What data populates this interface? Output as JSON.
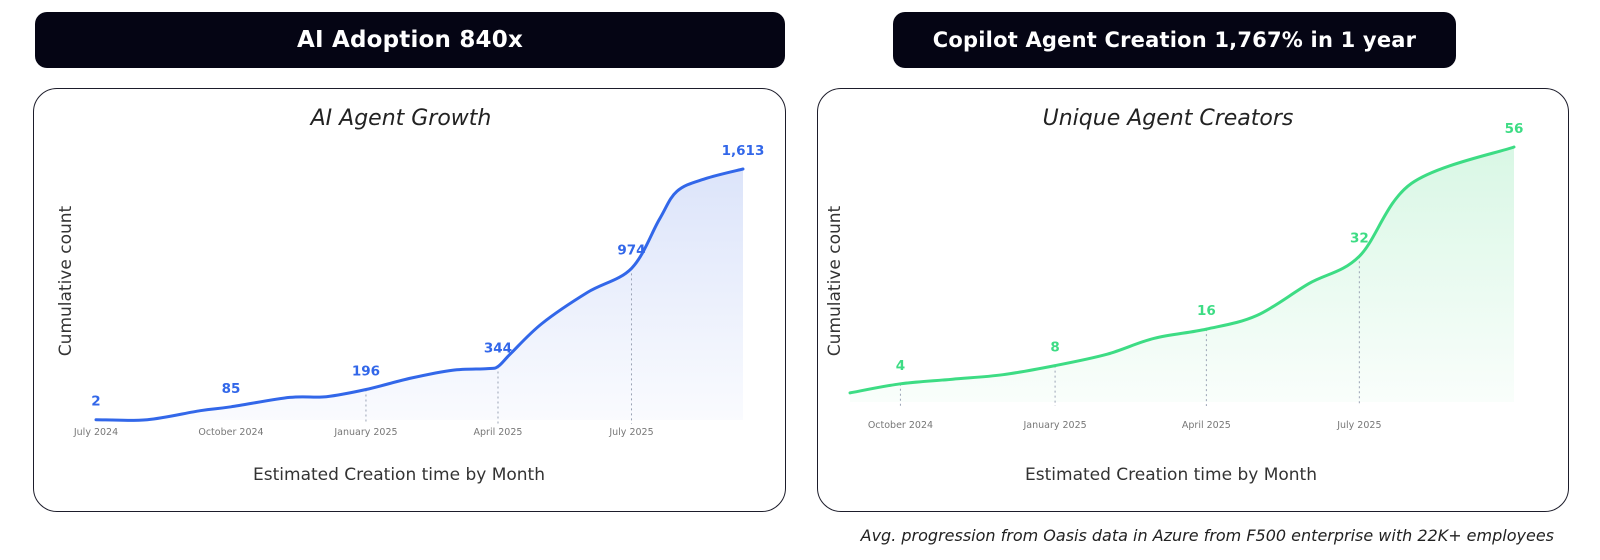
{
  "banners": {
    "left": "AI Adoption 840x",
    "right": "Copilot Agent Creation 1,767% in 1 year"
  },
  "footnote": "Avg. progression from Oasis data in Azure from F500 enterprise with 22K+ employees",
  "chart_data": [
    {
      "type": "area",
      "title": "AI Agent Growth",
      "xlabel": "Estimated Creation time by Month",
      "ylabel": "Cumulative count",
      "color": "#3267E9",
      "fill_color": "#DCE4FA",
      "grid": false,
      "xlim": [
        "2024-07-01",
        "2025-09-15"
      ],
      "ylim": [
        0,
        1613
      ],
      "x_ticks": [
        {
          "x": "2024-07-01",
          "label": "July 2024"
        },
        {
          "x": "2024-10-01",
          "label": "October 2024"
        },
        {
          "x": "2025-01-01",
          "label": "January 2025"
        },
        {
          "x": "2025-04-01",
          "label": "April 2025"
        },
        {
          "x": "2025-07-01",
          "label": "July 2025"
        }
      ],
      "guide_lines": [
        "2025-01-01",
        "2025-04-01",
        "2025-07-01"
      ],
      "points": [
        {
          "x": "2024-07-01",
          "y": 2
        },
        {
          "x": "2024-08-05",
          "y": 2
        },
        {
          "x": "2024-09-10",
          "y": 60
        },
        {
          "x": "2024-10-01",
          "y": 85
        },
        {
          "x": "2024-11-10",
          "y": 145
        },
        {
          "x": "2024-12-05",
          "y": 150
        },
        {
          "x": "2025-01-01",
          "y": 196
        },
        {
          "x": "2025-02-01",
          "y": 270
        },
        {
          "x": "2025-03-01",
          "y": 320
        },
        {
          "x": "2025-03-25",
          "y": 330
        },
        {
          "x": "2025-04-01",
          "y": 344
        },
        {
          "x": "2025-04-10",
          "y": 430
        },
        {
          "x": "2025-05-01",
          "y": 620
        },
        {
          "x": "2025-06-01",
          "y": 820
        },
        {
          "x": "2025-07-01",
          "y": 974
        },
        {
          "x": "2025-07-20",
          "y": 1290
        },
        {
          "x": "2025-08-01",
          "y": 1470
        },
        {
          "x": "2025-08-20",
          "y": 1550
        },
        {
          "x": "2025-09-15",
          "y": 1613
        }
      ],
      "labels": [
        {
          "x": "2024-07-01",
          "y": 2,
          "text": "2"
        },
        {
          "x": "2024-10-01",
          "y": 85,
          "text": "85"
        },
        {
          "x": "2025-01-01",
          "y": 196,
          "text": "196"
        },
        {
          "x": "2025-04-01",
          "y": 344,
          "text": "344"
        },
        {
          "x": "2025-07-01",
          "y": 974,
          "text": "974"
        },
        {
          "x": "2025-09-15",
          "y": 1613,
          "text": "1,613"
        }
      ]
    },
    {
      "type": "area",
      "title": "Unique Agent Creators",
      "xlabel": "Estimated Creation time by Month",
      "ylabel": "Cumulative count",
      "color": "#3DDC84",
      "fill_color": "#D9F7E5",
      "grid": false,
      "xlim": [
        "2024-09-01",
        "2025-10-01"
      ],
      "ylim": [
        0,
        56
      ],
      "x_ticks": [
        {
          "x": "2024-10-01",
          "label": "October 2024"
        },
        {
          "x": "2025-01-01",
          "label": "January 2025"
        },
        {
          "x": "2025-04-01",
          "label": "April 2025"
        },
        {
          "x": "2025-07-01",
          "label": "July 2025"
        }
      ],
      "guide_lines": [
        "2024-10-01",
        "2025-01-01",
        "2025-04-01",
        "2025-07-01"
      ],
      "points": [
        {
          "x": "2024-09-01",
          "y": 2
        },
        {
          "x": "2024-10-01",
          "y": 4
        },
        {
          "x": "2024-11-01",
          "y": 5
        },
        {
          "x": "2024-12-01",
          "y": 6
        },
        {
          "x": "2025-01-01",
          "y": 8
        },
        {
          "x": "2025-02-01",
          "y": 10.5
        },
        {
          "x": "2025-03-01",
          "y": 14
        },
        {
          "x": "2025-04-01",
          "y": 16
        },
        {
          "x": "2025-05-01",
          "y": 19
        },
        {
          "x": "2025-06-01",
          "y": 26
        },
        {
          "x": "2025-07-01",
          "y": 32
        },
        {
          "x": "2025-08-01",
          "y": 48
        },
        {
          "x": "2025-10-01",
          "y": 56
        }
      ],
      "labels": [
        {
          "x": "2024-10-01",
          "y": 4,
          "text": "4"
        },
        {
          "x": "2025-01-01",
          "y": 8,
          "text": "8"
        },
        {
          "x": "2025-04-01",
          "y": 16,
          "text": "16"
        },
        {
          "x": "2025-07-01",
          "y": 32,
          "text": "32"
        },
        {
          "x": "2025-10-01",
          "y": 56,
          "text": "56"
        }
      ]
    }
  ]
}
